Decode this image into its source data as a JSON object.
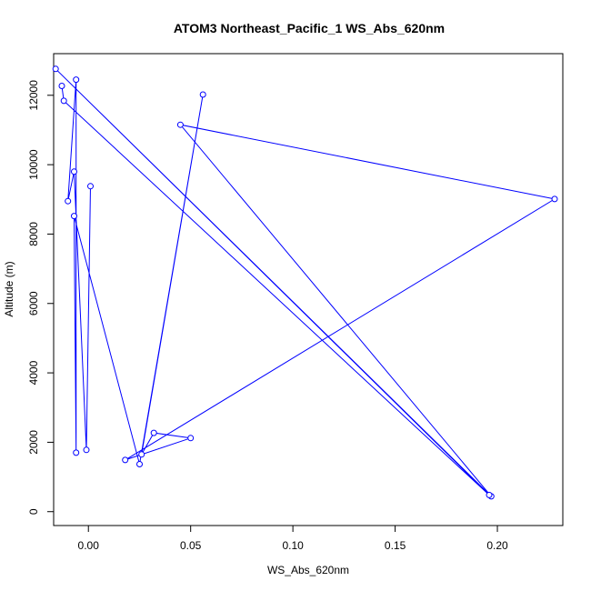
{
  "chart_data": {
    "type": "line",
    "title": "ATOM3 Northeast_Pacific_1 WS_Abs_620nm",
    "xlabel": "WS_Abs_620nm",
    "ylabel": "Altitude (m)",
    "xlim": [
      -0.017,
      0.232
    ],
    "ylim": [
      -400,
      13200
    ],
    "x_ticks": [
      0.0,
      0.05,
      0.1,
      0.15,
      0.2
    ],
    "x_tick_labels": [
      "0.00",
      "0.05",
      "0.10",
      "0.15",
      "0.20"
    ],
    "y_ticks": [
      0,
      2000,
      4000,
      6000,
      8000,
      10000,
      12000
    ],
    "y_tick_labels": [
      "0",
      "2000",
      "4000",
      "6000",
      "8000",
      "10000",
      "12000"
    ],
    "grid": false,
    "marker": "open-circle",
    "series": [
      {
        "color": "#0000ff",
        "points": [
          {
            "x": 0.001,
            "y": 9380
          },
          {
            "x": -0.001,
            "y": 1780
          },
          {
            "x": -0.007,
            "y": 9800
          },
          {
            "x": -0.01,
            "y": 8950
          },
          {
            "x": -0.006,
            "y": 12450
          },
          {
            "x": -0.006,
            "y": 1700
          },
          {
            "x": -0.007,
            "y": 8520
          },
          {
            "x": 0.025,
            "y": 1370
          },
          {
            "x": 0.056,
            "y": 12020
          },
          {
            "x": 0.026,
            "y": 1650
          },
          {
            "x": 0.032,
            "y": 2270
          },
          {
            "x": 0.05,
            "y": 2120
          },
          {
            "x": 0.018,
            "y": 1490
          },
          {
            "x": 0.228,
            "y": 9010
          },
          {
            "x": 0.045,
            "y": 11150
          },
          {
            "x": 0.197,
            "y": 440
          },
          {
            "x": -0.016,
            "y": 12760
          },
          {
            "x": 0.196,
            "y": 480
          },
          {
            "x": -0.012,
            "y": 11840
          },
          {
            "x": -0.013,
            "y": 12270
          }
        ]
      }
    ]
  }
}
